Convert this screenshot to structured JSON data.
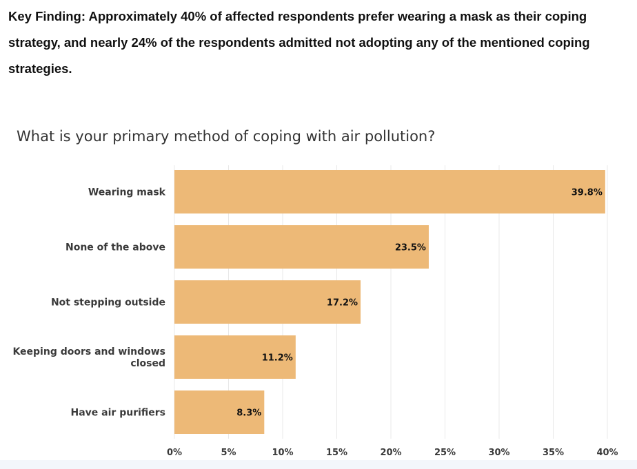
{
  "finding": {
    "line1": "Key Finding: Approximately 40% of affected respondents prefer wearing a mask as their coping",
    "line2": "strategy, and nearly 24% of the respondents admitted not adopting any of the mentioned coping",
    "line3": "strategies."
  },
  "colors": {
    "bar": "#edb977",
    "grid": "#e8e8e8",
    "background": "#ffffff",
    "bottom_strip": "#f3f6fb"
  },
  "chart_data": {
    "type": "bar",
    "orientation": "horizontal",
    "title": "What is your primary method of coping with air pollution?",
    "categories": [
      [
        "Wearing mask"
      ],
      [
        "None of the above"
      ],
      [
        "Not stepping outside"
      ],
      [
        "Keeping doors and windows",
        "closed"
      ],
      [
        "Have air purifiers"
      ]
    ],
    "values": [
      39.8,
      23.5,
      17.2,
      11.2,
      8.3
    ],
    "value_labels": [
      "39.8%",
      "23.5%",
      "17.2%",
      "11.2%",
      "8.3%"
    ],
    "xlim": [
      0,
      40
    ],
    "xticks": [
      0,
      5,
      10,
      15,
      20,
      25,
      30,
      35,
      40
    ],
    "xtick_labels": [
      "0%",
      "5%",
      "10%",
      "15%",
      "20%",
      "25%",
      "30%",
      "35%",
      "40%"
    ],
    "grid": true,
    "legend": "none",
    "xlabel": "",
    "ylabel": ""
  }
}
